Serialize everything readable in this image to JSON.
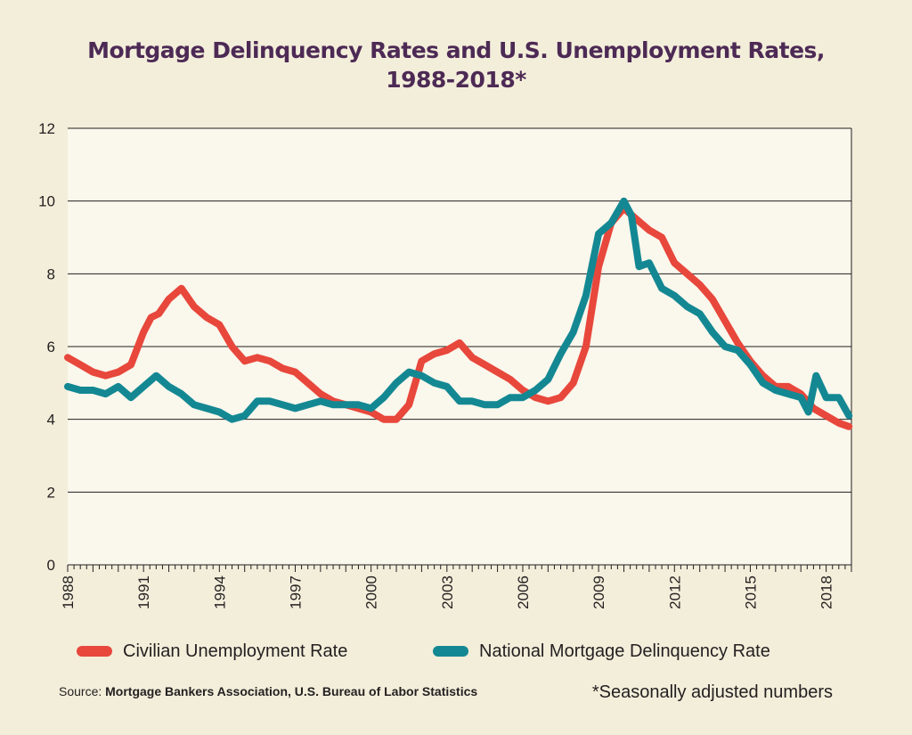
{
  "title_lines": [
    "Mortgage Delinquency Rates and U.S. Unemployment Rates,",
    "1988-2018*"
  ],
  "source_label": "Source:",
  "source_text": "Mortgage Bankers Association, U.S. Bureau of Labor Statistics",
  "footnote": "*Seasonally adjusted numbers",
  "chart_data": {
    "type": "line",
    "title": "Mortgage Delinquency Rates and U.S. Unemployment Rates, 1988-2018*",
    "xlabel": "",
    "ylabel": "",
    "xlim": [
      1988,
      2019
    ],
    "ylim": [
      0,
      12
    ],
    "x_ticks": [
      "1988",
      "1991",
      "1994",
      "1997",
      "2000",
      "2003",
      "2006",
      "2009",
      "2012",
      "2015",
      "2018"
    ],
    "y_ticks": [
      "0",
      "2",
      "4",
      "6",
      "8",
      "10",
      "12"
    ],
    "grid": true,
    "legend_position": "bottom",
    "series": [
      {
        "name": "Civilian Unemployment Rate",
        "color": "#e8473c",
        "points": [
          [
            1988.0,
            5.7
          ],
          [
            1988.5,
            5.5
          ],
          [
            1989.0,
            5.3
          ],
          [
            1989.5,
            5.2
          ],
          [
            1990.0,
            5.3
          ],
          [
            1990.5,
            5.5
          ],
          [
            1991.0,
            6.4
          ],
          [
            1991.3,
            6.8
          ],
          [
            1991.6,
            6.9
          ],
          [
            1992.0,
            7.3
          ],
          [
            1992.5,
            7.6
          ],
          [
            1993.0,
            7.1
          ],
          [
            1993.5,
            6.8
          ],
          [
            1994.0,
            6.6
          ],
          [
            1994.5,
            6.0
          ],
          [
            1995.0,
            5.6
          ],
          [
            1995.5,
            5.7
          ],
          [
            1996.0,
            5.6
          ],
          [
            1996.5,
            5.4
          ],
          [
            1997.0,
            5.3
          ],
          [
            1997.5,
            5.0
          ],
          [
            1998.0,
            4.7
          ],
          [
            1998.5,
            4.5
          ],
          [
            1999.0,
            4.4
          ],
          [
            1999.5,
            4.3
          ],
          [
            2000.0,
            4.2
          ],
          [
            2000.5,
            4.0
          ],
          [
            2001.0,
            4.0
          ],
          [
            2001.5,
            4.4
          ],
          [
            2002.0,
            5.6
          ],
          [
            2002.5,
            5.8
          ],
          [
            2003.0,
            5.9
          ],
          [
            2003.5,
            6.1
          ],
          [
            2004.0,
            5.7
          ],
          [
            2004.5,
            5.5
          ],
          [
            2005.0,
            5.3
          ],
          [
            2005.5,
            5.1
          ],
          [
            2006.0,
            4.8
          ],
          [
            2006.5,
            4.6
          ],
          [
            2007.0,
            4.5
          ],
          [
            2007.5,
            4.6
          ],
          [
            2008.0,
            5.0
          ],
          [
            2008.5,
            6.0
          ],
          [
            2009.0,
            8.2
          ],
          [
            2009.5,
            9.4
          ],
          [
            2010.0,
            9.8
          ],
          [
            2010.5,
            9.5
          ],
          [
            2011.0,
            9.2
          ],
          [
            2011.5,
            9.0
          ],
          [
            2012.0,
            8.3
          ],
          [
            2012.5,
            8.0
          ],
          [
            2013.0,
            7.7
          ],
          [
            2013.5,
            7.3
          ],
          [
            2014.0,
            6.7
          ],
          [
            2014.5,
            6.1
          ],
          [
            2015.0,
            5.6
          ],
          [
            2015.5,
            5.2
          ],
          [
            2016.0,
            4.9
          ],
          [
            2016.5,
            4.9
          ],
          [
            2017.0,
            4.7
          ],
          [
            2017.5,
            4.3
          ],
          [
            2018.0,
            4.1
          ],
          [
            2018.5,
            3.9
          ],
          [
            2018.9,
            3.8
          ]
        ]
      },
      {
        "name": "National Mortgage Delinquency Rate",
        "color": "#138893",
        "points": [
          [
            1988.0,
            4.9
          ],
          [
            1988.5,
            4.8
          ],
          [
            1989.0,
            4.8
          ],
          [
            1989.5,
            4.7
          ],
          [
            1990.0,
            4.9
          ],
          [
            1990.5,
            4.6
          ],
          [
            1991.0,
            4.9
          ],
          [
            1991.5,
            5.2
          ],
          [
            1992.0,
            4.9
          ],
          [
            1992.5,
            4.7
          ],
          [
            1993.0,
            4.4
          ],
          [
            1993.5,
            4.3
          ],
          [
            1994.0,
            4.2
          ],
          [
            1994.5,
            4.0
          ],
          [
            1995.0,
            4.1
          ],
          [
            1995.5,
            4.5
          ],
          [
            1996.0,
            4.5
          ],
          [
            1996.5,
            4.4
          ],
          [
            1997.0,
            4.3
          ],
          [
            1997.5,
            4.4
          ],
          [
            1998.0,
            4.5
          ],
          [
            1998.5,
            4.4
          ],
          [
            1999.0,
            4.4
          ],
          [
            1999.5,
            4.4
          ],
          [
            2000.0,
            4.3
          ],
          [
            2000.5,
            4.6
          ],
          [
            2001.0,
            5.0
          ],
          [
            2001.5,
            5.3
          ],
          [
            2002.0,
            5.2
          ],
          [
            2002.5,
            5.0
          ],
          [
            2003.0,
            4.9
          ],
          [
            2003.5,
            4.5
          ],
          [
            2004.0,
            4.5
          ],
          [
            2004.5,
            4.4
          ],
          [
            2005.0,
            4.4
          ],
          [
            2005.5,
            4.6
          ],
          [
            2006.0,
            4.6
          ],
          [
            2006.5,
            4.8
          ],
          [
            2007.0,
            5.1
          ],
          [
            2007.5,
            5.8
          ],
          [
            2008.0,
            6.4
          ],
          [
            2008.5,
            7.4
          ],
          [
            2009.0,
            9.1
          ],
          [
            2009.5,
            9.4
          ],
          [
            2010.0,
            10.0
          ],
          [
            2010.3,
            9.6
          ],
          [
            2010.6,
            8.2
          ],
          [
            2011.0,
            8.3
          ],
          [
            2011.5,
            7.6
          ],
          [
            2012.0,
            7.4
          ],
          [
            2012.5,
            7.1
          ],
          [
            2013.0,
            6.9
          ],
          [
            2013.5,
            6.4
          ],
          [
            2014.0,
            6.0
          ],
          [
            2014.5,
            5.9
          ],
          [
            2015.0,
            5.5
          ],
          [
            2015.5,
            5.0
          ],
          [
            2016.0,
            4.8
          ],
          [
            2016.5,
            4.7
          ],
          [
            2017.0,
            4.6
          ],
          [
            2017.3,
            4.2
          ],
          [
            2017.6,
            5.2
          ],
          [
            2018.0,
            4.6
          ],
          [
            2018.5,
            4.6
          ],
          [
            2018.9,
            4.1
          ]
        ]
      }
    ]
  }
}
